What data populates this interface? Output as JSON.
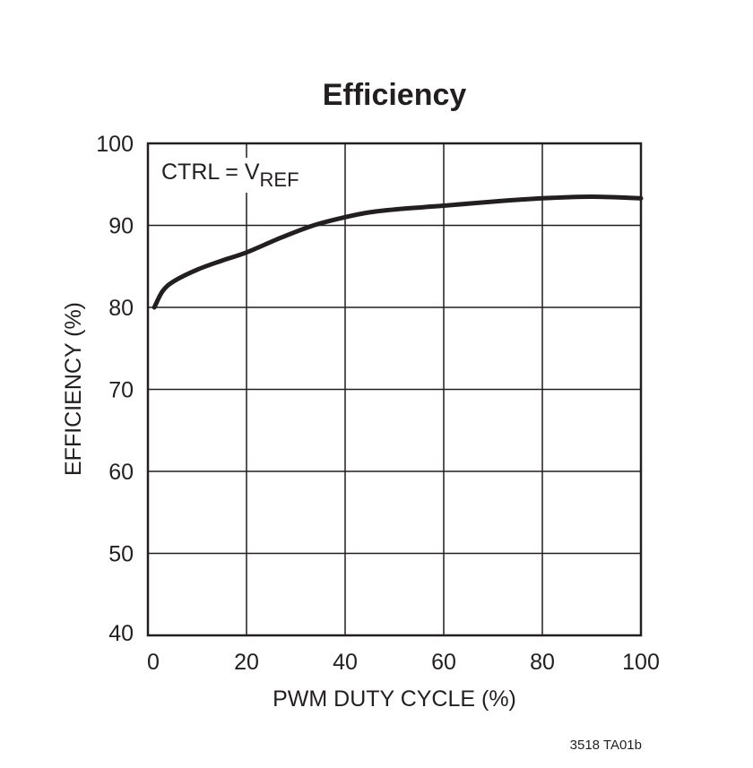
{
  "chart_data": {
    "type": "line",
    "title": "Efficiency",
    "xlabel": "PWM DUTY CYCLE (%)",
    "ylabel": "EFFICIENCY (%)",
    "xlim": [
      0,
      100
    ],
    "ylim": [
      40,
      100
    ],
    "xticks": [
      "0",
      "20",
      "40",
      "60",
      "80",
      "100"
    ],
    "yticks": [
      "40",
      "50",
      "60",
      "70",
      "80",
      "90",
      "100"
    ],
    "grid": true,
    "annotation": {
      "main": "CTRL = V",
      "sub": "REF"
    },
    "series": [
      {
        "color": "#231f20",
        "x": [
          1.3,
          3,
          5.3,
          10,
          15,
          20,
          27,
          33.6,
          40,
          45,
          51,
          60,
          70,
          80,
          90,
          100
        ],
        "y": [
          80,
          82,
          83.2,
          84.6,
          85.7,
          86.7,
          88.5,
          90,
          91,
          91.6,
          92,
          92.4,
          92.9,
          93.3,
          93.5,
          93.3
        ]
      }
    ],
    "footnote": "3518 TA01b"
  }
}
